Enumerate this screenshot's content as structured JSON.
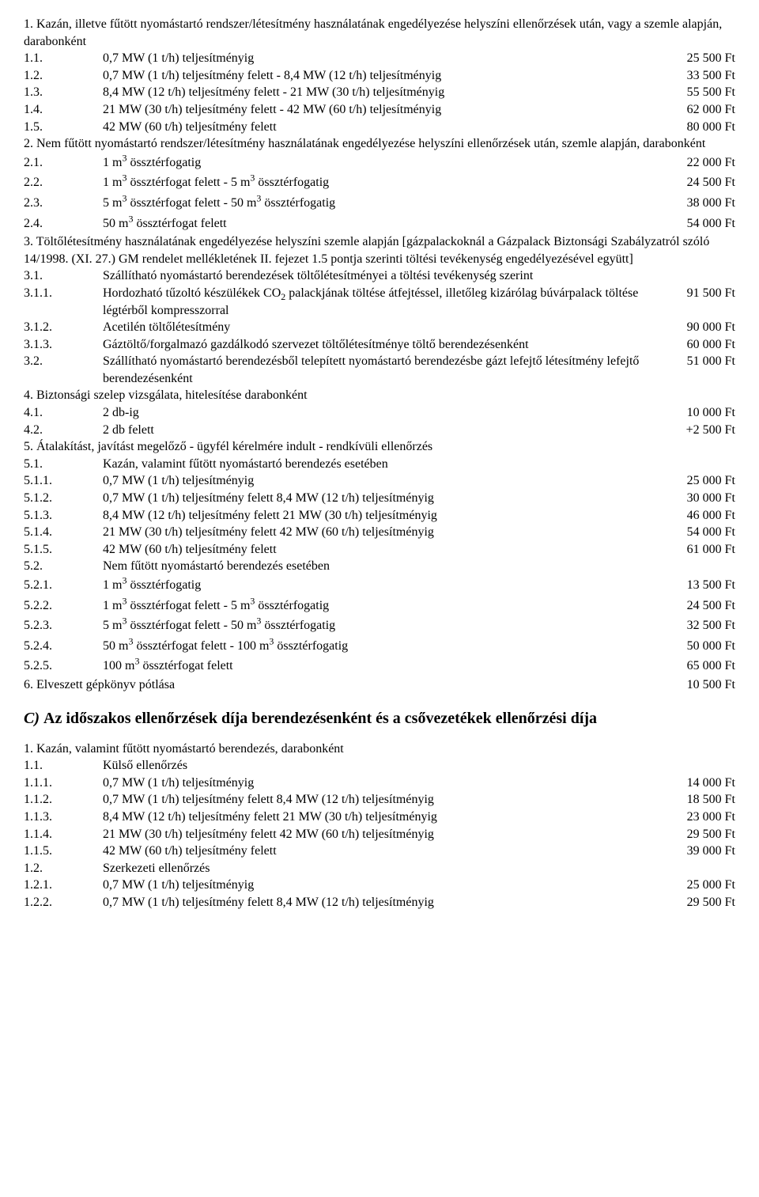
{
  "intro1": "1. Kazán, illetve fűtött nyomástartó rendszer/létesítmény használatának engedélyezése helyszíni ellenőrzések után, vagy a szemle alapján, darabonként",
  "r": [
    {
      "n": "1.1.",
      "t": "0,7 MW (1 t/h) teljesítményig",
      "p": "25 500 Ft"
    },
    {
      "n": "1.2.",
      "t": "0,7 MW (1 t/h) teljesítmény felett - 8,4 MW (12 t/h) teljesítményig",
      "p": "33 500 Ft"
    },
    {
      "n": "1.3.",
      "t": "8,4 MW (12 t/h) teljesítmény felett - 21 MW (30 t/h) teljesítményig",
      "p": "55 500 Ft"
    },
    {
      "n": "1.4.",
      "t": "21 MW (30 t/h) teljesítmény felett - 42 MW (60 t/h) teljesítményig",
      "p": "62 000 Ft"
    },
    {
      "n": "1.5.",
      "t": "42 MW (60 t/h) teljesítmény felett",
      "p": "80 000 Ft"
    }
  ],
  "intro2": "2. Nem fűtött nyomástartó rendszer/létesítmény használatának engedélyezése helyszíni ellenőrzések után, szemle alapján, darabonként",
  "r2": [
    {
      "n": "2.1.",
      "t": "1 m³ össztérfogatig",
      "p": "22 000 Ft"
    },
    {
      "n": "2.2.",
      "t": "1 m³ össztérfogat felett - 5 m³ össztérfogatig",
      "p": "24 500 Ft"
    },
    {
      "n": "2.3.",
      "t": "5 m³ össztérfogat felett - 50 m³ össztérfogatig",
      "p": "38 000 Ft"
    },
    {
      "n": "2.4.",
      "t": "50 m³ össztérfogat felett",
      "p": "54 000 Ft"
    }
  ],
  "intro3": "3. Töltőlétesítmény használatának engedélyezése helyszíni szemle alapján [gázpalackoknál a Gázpalack Biztonsági Szabályzatról szóló 14/1998. (XI. 27.) GM rendelet mellékletének II. fejezet 1.5 pontja szerinti töltési tevékenység engedélyezésével együtt]",
  "r3a_n": "3.1.",
  "r3a_t": "Szállítható nyomástartó berendezések töltőlétesítményei a töltési tevékenység szerint",
  "r3": [
    {
      "n": "3.1.1.",
      "t": "Hordozható tűzoltó készülékek CO₂ palackjának töltése átfejtéssel, illetőleg kizárólag búvárpalack töltése légtérből kompresszorral",
      "p": "91 500 Ft"
    },
    {
      "n": "3.1.2.",
      "t": "Acetilén töltőlétesítmény",
      "p": "90 000 Ft"
    },
    {
      "n": "3.1.3.",
      "t": "Gáztöltő/forgalmazó gazdálkodó szervezet töltőlétesítménye töltő berendezésenként",
      "p": "60 000 Ft"
    },
    {
      "n": "3.2.",
      "t": "Szállítható nyomástartó berendezésből telepített nyomástartó berendezésbe gázt lefejtő létesítmény lefejtő berendezésenként",
      "p": "51 000 Ft"
    }
  ],
  "intro4": "4. Biztonsági szelep vizsgálata, hitelesítése darabonként",
  "r4": [
    {
      "n": "4.1.",
      "t": "2 db-ig",
      "p": "10 000 Ft"
    },
    {
      "n": "4.2.",
      "t": "2 db felett",
      "p": "+2 500 Ft"
    }
  ],
  "intro5": "5. Átalakítást, javítást megelőző - ügyfél kérelmére indult - rendkívüli ellenőrzés",
  "r5a_n": "5.1.",
  "r5a_t": "Kazán, valamint fűtött nyomástartó berendezés esetében",
  "r5": [
    {
      "n": "5.1.1.",
      "t": "0,7 MW (1 t/h) teljesítményig",
      "p": "25 000 Ft"
    },
    {
      "n": "5.1.2.",
      "t": "0,7 MW (1 t/h) teljesítmény felett 8,4 MW (12 t/h) teljesítményig",
      "p": "30 000 Ft"
    },
    {
      "n": "5.1.3.",
      "t": "8,4 MW (12 t/h) teljesítmény felett 21 MW (30 t/h) teljesítményig",
      "p": "46 000 Ft"
    },
    {
      "n": "5.1.4.",
      "t": "21 MW (30 t/h) teljesítmény felett 42 MW (60 t/h) teljesítményig",
      "p": "54 000 Ft"
    },
    {
      "n": "5.1.5.",
      "t": "42 MW (60 t/h) teljesítmény felett",
      "p": "61 000 Ft"
    }
  ],
  "r5b_n": "5.2.",
  "r5b_t": "Nem fűtött nyomástartó berendezés esetében",
  "r5c": [
    {
      "n": "5.2.1.",
      "t": "1 m³ össztérfogatig",
      "p": "13 500 Ft"
    },
    {
      "n": "5.2.2.",
      "t": "1 m³ össztérfogat felett - 5 m³ össztérfogatig",
      "p": "24 500 Ft"
    },
    {
      "n": "5.2.3.",
      "t": "5 m³ össztérfogat felett - 50 m³ össztérfogatig",
      "p": "32 500 Ft"
    },
    {
      "n": "5.2.4.",
      "t": "50 m³ össztérfogat felett - 100 m³ össztérfogatig",
      "p": "50 000 Ft"
    },
    {
      "n": "5.2.5.",
      "t": "100 m³ össztérfogat felett",
      "p": "65 000 Ft"
    }
  ],
  "r6_t": "6. Elveszett gépkönyv pótlása",
  "r6_p": "10 500 Ft",
  "headingC_prefix": "C) ",
  "headingC": "Az időszakos ellenőrzések díja berendezésenként és a csővezetékek ellenőrzési díja",
  "introC": "1. Kazán, valamint fűtött nyomástartó berendezés, darabonként",
  "rc1_n": "1.1.",
  "rc1_t": "Külső ellenőrzés",
  "rc": [
    {
      "n": "1.1.1.",
      "t": "0,7 MW (1 t/h) teljesítményig",
      "p": "14 000 Ft"
    },
    {
      "n": "1.1.2.",
      "t": "0,7 MW (1 t/h) teljesítmény felett 8,4 MW (12 t/h) teljesítményig",
      "p": "18 500 Ft"
    },
    {
      "n": "1.1.3.",
      "t": "8,4 MW (12 t/h) teljesítmény felett 21 MW (30 t/h) teljesítményig",
      "p": "23 000 Ft"
    },
    {
      "n": "1.1.4.",
      "t": "21 MW (30 t/h) teljesítmény felett 42 MW (60 t/h) teljesítményig",
      "p": "29 500 Ft"
    },
    {
      "n": "1.1.5.",
      "t": "42 MW (60 t/h) teljesítmény felett",
      "p": "39 000 Ft"
    }
  ],
  "rc2_n": "1.2.",
  "rc2_t": "Szerkezeti ellenőrzés",
  "rc2": [
    {
      "n": "1.2.1.",
      "t": "0,7 MW (1 t/h) teljesítményig",
      "p": "25 000 Ft"
    },
    {
      "n": "1.2.2.",
      "t": "0,7 MW (1 t/h) teljesítmény felett 8,4 MW (12 t/h) teljesítményig",
      "p": "29 500 Ft"
    }
  ]
}
